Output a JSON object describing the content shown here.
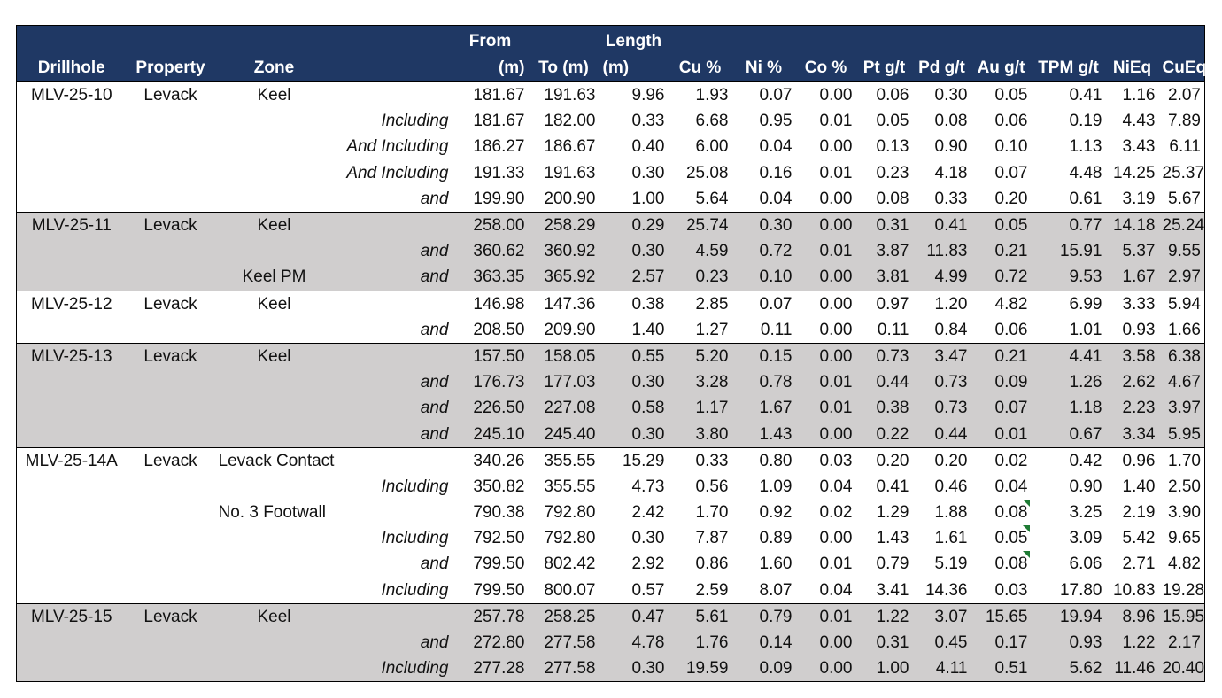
{
  "headers": {
    "row1": {
      "from": "From",
      "length": "Length"
    },
    "row2": {
      "drillhole": "Drillhole",
      "property": "Property",
      "zone": "Zone",
      "from": "(m)",
      "to": "To (m)",
      "length": "(m)",
      "cu": "Cu %",
      "ni": "Ni %",
      "co": "Co %",
      "pt": "Pt g/t",
      "pd": "Pd g/t",
      "au": "Au g/t",
      "tpm": "TPM g/t",
      "nieq": "NiEq",
      "cueq": "CuEq"
    }
  },
  "groups": [
    {
      "shade": "white",
      "rows": [
        {
          "hole": "MLV-25-10",
          "prop": "Levack",
          "zone": "Keel",
          "qual": "",
          "from": "181.67",
          "to": "191.63",
          "len": "9.96",
          "cu": "1.93",
          "ni": "0.07",
          "co": "0.00",
          "pt": "0.06",
          "pd": "0.30",
          "au": "0.05",
          "tpm": "0.41",
          "nieq": "1.16",
          "cueq": "2.07"
        },
        {
          "hole": "",
          "prop": "",
          "zone": "",
          "qual": "Including",
          "from": "181.67",
          "to": "182.00",
          "len": "0.33",
          "cu": "6.68",
          "ni": "0.95",
          "co": "0.01",
          "pt": "0.05",
          "pd": "0.08",
          "au": "0.06",
          "tpm": "0.19",
          "nieq": "4.43",
          "cueq": "7.89"
        },
        {
          "hole": "",
          "prop": "",
          "zone": "",
          "qual": "And Including",
          "from": "186.27",
          "to": "186.67",
          "len": "0.40",
          "cu": "6.00",
          "ni": "0.04",
          "co": "0.00",
          "pt": "0.13",
          "pd": "0.90",
          "au": "0.10",
          "tpm": "1.13",
          "nieq": "3.43",
          "cueq": "6.11"
        },
        {
          "hole": "",
          "prop": "",
          "zone": "",
          "qual": "And Including",
          "from": "191.33",
          "to": "191.63",
          "len": "0.30",
          "cu": "25.08",
          "ni": "0.16",
          "co": "0.01",
          "pt": "0.23",
          "pd": "4.18",
          "au": "0.07",
          "tpm": "4.48",
          "nieq": "14.25",
          "cueq": "25.37"
        },
        {
          "hole": "",
          "prop": "",
          "zone": "",
          "qual": "and",
          "from": "199.90",
          "to": "200.90",
          "len": "1.00",
          "cu": "5.64",
          "ni": "0.04",
          "co": "0.00",
          "pt": "0.08",
          "pd": "0.33",
          "au": "0.20",
          "tpm": "0.61",
          "nieq": "3.19",
          "cueq": "5.67"
        }
      ]
    },
    {
      "shade": "grey",
      "rows": [
        {
          "hole": "MLV-25-11",
          "prop": "Levack",
          "zone": "Keel",
          "qual": "",
          "from": "258.00",
          "to": "258.29",
          "len": "0.29",
          "cu": "25.74",
          "ni": "0.30",
          "co": "0.00",
          "pt": "0.31",
          "pd": "0.41",
          "au": "0.05",
          "tpm": "0.77",
          "nieq": "14.18",
          "cueq": "25.24"
        },
        {
          "hole": "",
          "prop": "",
          "zone": "",
          "qual": "and",
          "from": "360.62",
          "to": "360.92",
          "len": "0.30",
          "cu": "4.59",
          "ni": "0.72",
          "co": "0.01",
          "pt": "3.87",
          "pd": "11.83",
          "au": "0.21",
          "tpm": "15.91",
          "nieq": "5.37",
          "cueq": "9.55"
        },
        {
          "hole": "",
          "prop": "",
          "zone": "Keel PM",
          "qual": "and",
          "from": "363.35",
          "to": "365.92",
          "len": "2.57",
          "cu": "0.23",
          "ni": "0.10",
          "co": "0.00",
          "pt": "3.81",
          "pd": "4.99",
          "au": "0.72",
          "tpm": "9.53",
          "nieq": "1.67",
          "cueq": "2.97"
        }
      ]
    },
    {
      "shade": "white",
      "rows": [
        {
          "hole": "MLV-25-12",
          "prop": "Levack",
          "zone": "Keel",
          "qual": "",
          "from": "146.98",
          "to": "147.36",
          "len": "0.38",
          "cu": "2.85",
          "ni": "0.07",
          "co": "0.00",
          "pt": "0.97",
          "pd": "1.20",
          "au": "4.82",
          "tpm": "6.99",
          "nieq": "3.33",
          "cueq": "5.94"
        },
        {
          "hole": "",
          "prop": "",
          "zone": "",
          "qual": "and",
          "from": "208.50",
          "to": "209.90",
          "len": "1.40",
          "cu": "1.27",
          "ni": "0.11",
          "co": "0.00",
          "pt": "0.11",
          "pd": "0.84",
          "au": "0.06",
          "tpm": "1.01",
          "nieq": "0.93",
          "cueq": "1.66"
        }
      ]
    },
    {
      "shade": "grey",
      "rows": [
        {
          "hole": "MLV-25-13",
          "prop": "Levack",
          "zone": "Keel",
          "qual": "",
          "from": "157.50",
          "to": "158.05",
          "len": "0.55",
          "cu": "5.20",
          "ni": "0.15",
          "co": "0.00",
          "pt": "0.73",
          "pd": "3.47",
          "au": "0.21",
          "tpm": "4.41",
          "nieq": "3.58",
          "cueq": "6.38"
        },
        {
          "hole": "",
          "prop": "",
          "zone": "",
          "qual": "and",
          "from": "176.73",
          "to": "177.03",
          "len": "0.30",
          "cu": "3.28",
          "ni": "0.78",
          "co": "0.01",
          "pt": "0.44",
          "pd": "0.73",
          "au": "0.09",
          "tpm": "1.26",
          "nieq": "2.62",
          "cueq": "4.67"
        },
        {
          "hole": "",
          "prop": "",
          "zone": "",
          "qual": "and",
          "from": "226.50",
          "to": "227.08",
          "len": "0.58",
          "cu": "1.17",
          "ni": "1.67",
          "co": "0.01",
          "pt": "0.38",
          "pd": "0.73",
          "au": "0.07",
          "tpm": "1.18",
          "nieq": "2.23",
          "cueq": "3.97"
        },
        {
          "hole": "",
          "prop": "",
          "zone": "",
          "qual": "and",
          "from": "245.10",
          "to": "245.40",
          "len": "0.30",
          "cu": "3.80",
          "ni": "1.43",
          "co": "0.00",
          "pt": "0.22",
          "pd": "0.44",
          "au": "0.01",
          "tpm": "0.67",
          "nieq": "3.34",
          "cueq": "5.95"
        }
      ]
    },
    {
      "shade": "white",
      "rows": [
        {
          "hole": "MLV-25-14A",
          "prop": "Levack",
          "zone": "Levack Contact",
          "zalign": "left",
          "qual": "",
          "from": "340.26",
          "to": "355.55",
          "len": "15.29",
          "cu": "0.33",
          "ni": "0.80",
          "co": "0.03",
          "pt": "0.20",
          "pd": "0.20",
          "au": "0.02",
          "tpm": "0.42",
          "nieq": "0.96",
          "cueq": "1.70"
        },
        {
          "hole": "",
          "prop": "",
          "zone": "",
          "qual": "Including",
          "from": "350.82",
          "to": "355.55",
          "len": "4.73",
          "cu": "0.56",
          "ni": "1.09",
          "co": "0.04",
          "pt": "0.41",
          "pd": "0.46",
          "au": "0.04",
          "tpm": "0.90",
          "nieq": "1.40",
          "cueq": "2.50"
        },
        {
          "hole": "",
          "prop": "",
          "zone": "No. 3 Footwall",
          "zalign": "left",
          "qual": "",
          "from": "790.38",
          "to": "792.80",
          "len": "2.42",
          "cu": "1.70",
          "ni": "0.92",
          "co": "0.02",
          "pt": "1.29",
          "pd": "1.88",
          "au": "0.08",
          "auflag": true,
          "tpm": "3.25",
          "nieq": "2.19",
          "cueq": "3.90"
        },
        {
          "hole": "",
          "prop": "",
          "zone": "",
          "qual": "Including",
          "from": "792.50",
          "to": "792.80",
          "len": "0.30",
          "cu": "7.87",
          "ni": "0.89",
          "co": "0.00",
          "pt": "1.43",
          "pd": "1.61",
          "au": "0.05",
          "auflag": true,
          "tpm": "3.09",
          "nieq": "5.42",
          "cueq": "9.65"
        },
        {
          "hole": "",
          "prop": "",
          "zone": "",
          "qual": "and",
          "from": "799.50",
          "to": "802.42",
          "len": "2.92",
          "cu": "0.86",
          "ni": "1.60",
          "co": "0.01",
          "pt": "0.79",
          "pd": "5.19",
          "au": "0.08",
          "auflag": true,
          "tpm": "6.06",
          "nieq": "2.71",
          "cueq": "4.82"
        },
        {
          "hole": "",
          "prop": "",
          "zone": "",
          "qual": "Including",
          "from": "799.50",
          "to": "800.07",
          "len": "0.57",
          "cu": "2.59",
          "ni": "8.07",
          "co": "0.04",
          "pt": "3.41",
          "pd": "14.36",
          "au": "0.03",
          "tpm": "17.80",
          "nieq": "10.83",
          "cueq": "19.28"
        }
      ]
    },
    {
      "shade": "grey",
      "rows": [
        {
          "hole": "MLV-25-15",
          "prop": "Levack",
          "zone": "Keel",
          "qual": "",
          "from": "257.78",
          "to": "258.25",
          "len": "0.47",
          "cu": "5.61",
          "ni": "0.79",
          "co": "0.01",
          "pt": "1.22",
          "pd": "3.07",
          "au": "15.65",
          "tpm": "19.94",
          "nieq": "8.96",
          "cueq": "15.95"
        },
        {
          "hole": "",
          "prop": "",
          "zone": "",
          "qual": "and",
          "from": "272.80",
          "to": "277.58",
          "len": "4.78",
          "cu": "1.76",
          "ni": "0.14",
          "co": "0.00",
          "pt": "0.31",
          "pd": "0.45",
          "au": "0.17",
          "tpm": "0.93",
          "nieq": "1.22",
          "cueq": "2.17"
        },
        {
          "hole": "",
          "prop": "",
          "zone": "",
          "qual": "Including",
          "from": "277.28",
          "to": "277.58",
          "len": "0.30",
          "cu": "19.59",
          "ni": "0.09",
          "co": "0.00",
          "pt": "1.00",
          "pd": "4.11",
          "au": "0.51",
          "tpm": "5.62",
          "nieq": "11.46",
          "cueq": "20.40"
        }
      ]
    }
  ],
  "colors": {
    "header_bg": "#1f3864",
    "grey_band": "#d0cece",
    "flag": "#1e7b34"
  }
}
